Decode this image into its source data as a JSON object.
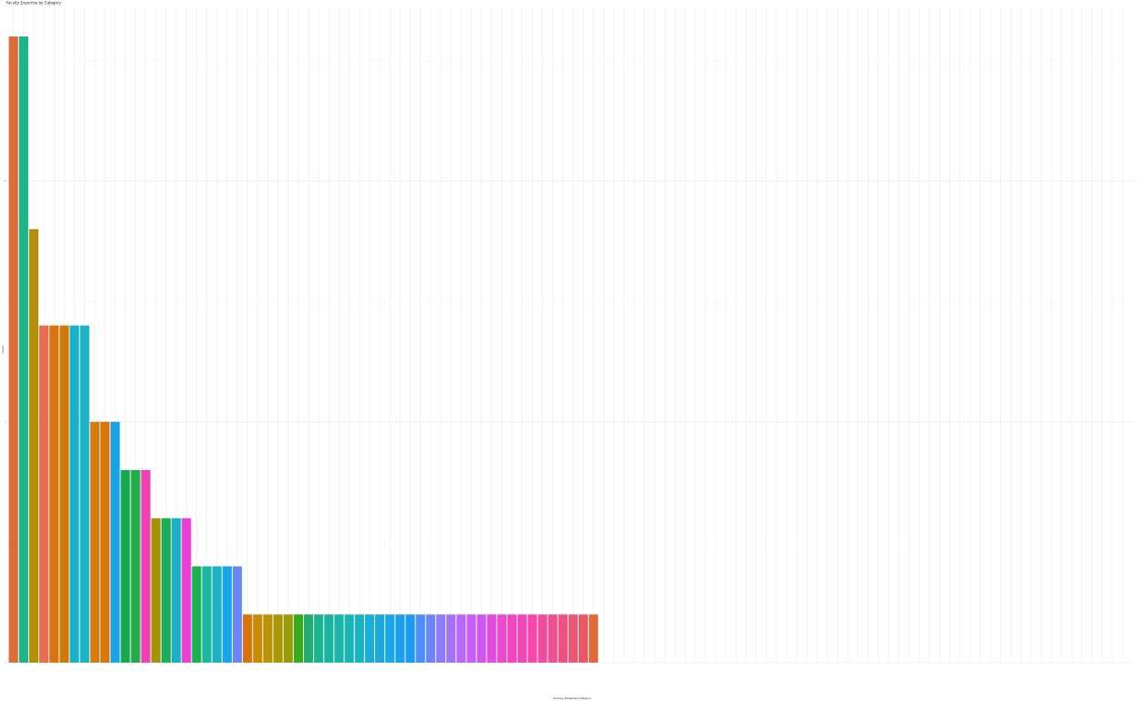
{
  "chart_data": {
    "type": "bar",
    "title": "Faculty Expertise by Category",
    "xlabel": "Primary Expertise Category",
    "ylabel": "Count",
    "ylim": [
      0,
      13
    ],
    "y_ticks": [
      0,
      5,
      10
    ],
    "grid": true,
    "legend": "none",
    "values": [
      13,
      13,
      9,
      7,
      7,
      7,
      7,
      7,
      5,
      5,
      5,
      4,
      4,
      4,
      3,
      3,
      3,
      3,
      2,
      2,
      2,
      2,
      2,
      1,
      1,
      1,
      1,
      1,
      1,
      1,
      1,
      1,
      1,
      1,
      1,
      1,
      1,
      1,
      1,
      1,
      1,
      1,
      1,
      1,
      1,
      1,
      1,
      1,
      1,
      1,
      1,
      1,
      1,
      1,
      1,
      1,
      1,
      1,
      0,
      0,
      0,
      0,
      0,
      0,
      0,
      0,
      0,
      0,
      0,
      0,
      0,
      0,
      0,
      0,
      0,
      0,
      0,
      0,
      0,
      0,
      0,
      0,
      0,
      0,
      0,
      0,
      0,
      0,
      0,
      0,
      0,
      0,
      0,
      0,
      0,
      0,
      0,
      0,
      0,
      0,
      0,
      0,
      0,
      0,
      0,
      0,
      0,
      0,
      0,
      0
    ],
    "colors": [
      "#e06b3a",
      "#1fb58a",
      "#b38f0a",
      "#ee6a4f",
      "#d8730f",
      "#cf7a05",
      "#17b2c8",
      "#1cb3c8",
      "#d87a12",
      "#d9770d",
      "#1aa3e8",
      "#1aa84e",
      "#22ad4a",
      "#f23fb4",
      "#a6930a",
      "#1bae57",
      "#1bb0c6",
      "#ec3fd8",
      "#1ab24f",
      "#1db79c",
      "#1ab2c4",
      "#1aa3e6",
      "#6a86f8",
      "#d8740e",
      "#c98a04",
      "#b99206",
      "#a69705",
      "#979b05",
      "#38aa1c",
      "#1eaf6c",
      "#1ab391",
      "#1ab49e",
      "#1ab5a8",
      "#1ab4b6",
      "#1ab3c0",
      "#1aadd8",
      "#1aa8e4",
      "#1aa4ea",
      "#1a9fee",
      "#1a9af2",
      "#4b8ef8",
      "#6b86fa",
      "#8c7cfa",
      "#a570fa",
      "#b867f8",
      "#c55ef6",
      "#cf55f0",
      "#e44ce0",
      "#f046d2",
      "#f444c4",
      "#f445b8",
      "#f647aa",
      "#f24a9c",
      "#f04e8e",
      "#ee5280",
      "#ec5672",
      "#ea5866"
    ]
  }
}
